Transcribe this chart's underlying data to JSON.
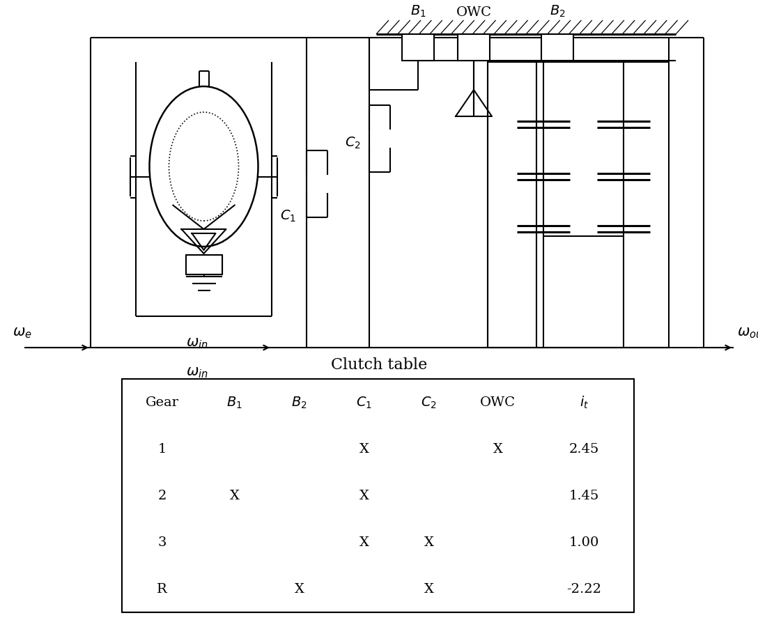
{
  "title": "Clutch table",
  "table_headers": [
    "Gear",
    "B_1",
    "B_2",
    "C_1",
    "C_2",
    "OWC",
    "i_t"
  ],
  "table_rows": [
    [
      "1",
      "",
      "",
      "X",
      "",
      "X",
      "2.45"
    ],
    [
      "2",
      "X",
      "",
      "X",
      "",
      "",
      "1.45"
    ],
    [
      "3",
      "",
      "",
      "X",
      "X",
      "",
      "1.00"
    ],
    [
      "R",
      "",
      "X",
      "",
      "X",
      "",
      "-2.22"
    ]
  ],
  "line_color": "black",
  "bg_color": "white",
  "lw": 1.5
}
